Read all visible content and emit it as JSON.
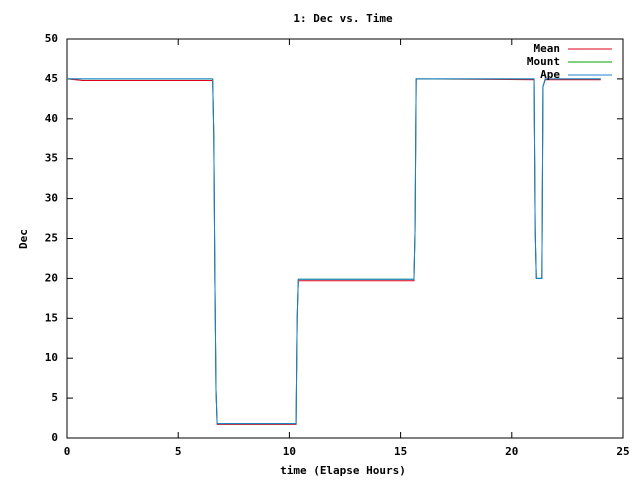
{
  "chart_data": {
    "type": "line",
    "title": "1: Dec vs. Time",
    "x_label": "time (Elapse Hours)",
    "y_label": "Dec",
    "x": [
      0,
      0.7,
      6.55,
      6.6,
      6.65,
      6.7,
      6.75,
      10.3,
      10.35,
      10.4,
      15.6,
      15.65,
      15.7,
      21.0,
      21.05,
      21.1,
      21.35,
      21.4,
      21.5,
      24
    ],
    "series": [
      {
        "name": "Mean",
        "color": "#e0001a",
        "values": [
          45,
          44.8,
          44.8,
          38,
          20,
          6,
          1.7,
          1.7,
          15,
          19.7,
          19.7,
          26,
          45,
          44.9,
          26,
          20,
          20,
          44,
          44.9,
          44.9
        ]
      },
      {
        "name": "Mount",
        "color": "#00a000",
        "values": [
          45,
          45,
          45,
          38,
          20,
          6,
          1.8,
          1.8,
          15,
          19.9,
          19.9,
          26,
          45,
          45,
          26,
          20,
          20,
          44,
          45,
          45
        ]
      },
      {
        "name": "Ape",
        "color": "#1a7fd4",
        "values": [
          45,
          45,
          45,
          38,
          20,
          6,
          1.8,
          1.8,
          15,
          19.9,
          19.9,
          26,
          45,
          45,
          26,
          20,
          20,
          44,
          45,
          45
        ]
      }
    ],
    "xlim": [
      0,
      25
    ],
    "xticks": [
      0,
      5,
      10,
      15,
      20,
      25
    ],
    "ylim": [
      0,
      50
    ],
    "yticks": [
      0,
      5,
      10,
      15,
      20,
      25,
      30,
      35,
      40,
      45,
      50
    ],
    "legend": "top right"
  }
}
